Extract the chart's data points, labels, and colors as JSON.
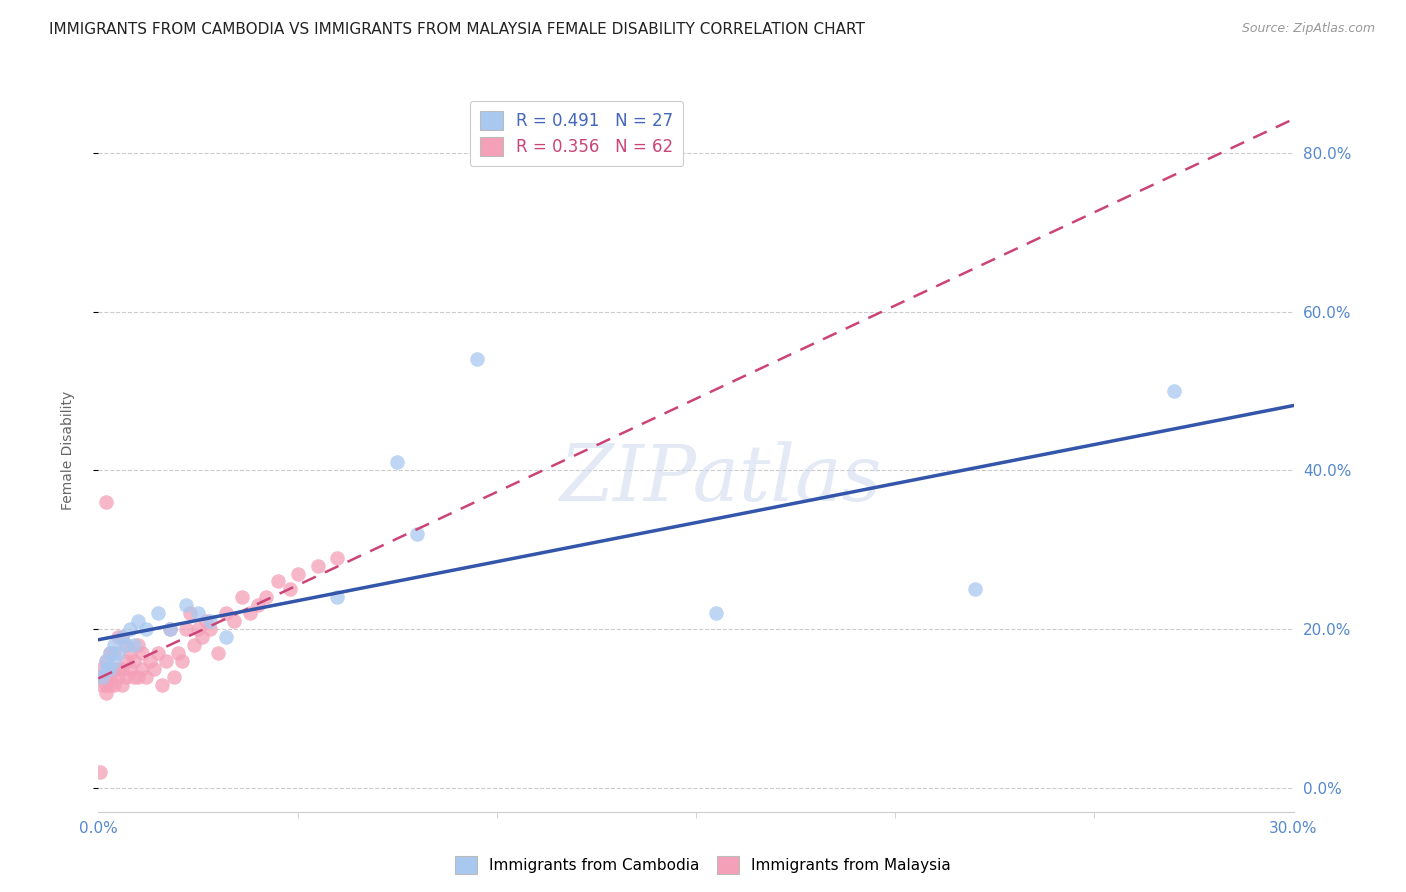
{
  "title": "IMMIGRANTS FROM CAMBODIA VS IMMIGRANTS FROM MALAYSIA FEMALE DISABILITY CORRELATION CHART",
  "source": "Source: ZipAtlas.com",
  "ylabel": "Female Disability",
  "xlim": [
    0.0,
    0.3
  ],
  "ylim": [
    -0.03,
    0.88
  ],
  "ytick_values": [
    0.0,
    0.2,
    0.4,
    0.6,
    0.8
  ],
  "xtick_values": [
    0.0,
    0.3
  ],
  "xtick_extra": [
    0.05,
    0.1,
    0.15,
    0.2,
    0.25
  ],
  "grid_color": "#cccccc",
  "background_color": "#ffffff",
  "color_cambodia": "#a8c8f0",
  "color_malaysia": "#f4a0b8",
  "line_color_cambodia": "#3355aa",
  "line_color_malaysia": "#cc4477",
  "legend_R1": "0.491",
  "legend_N1": "27",
  "legend_R2": "0.356",
  "legend_N2": "62",
  "scatter_cambodia_x": [
    0.001,
    0.002,
    0.002,
    0.003,
    0.003,
    0.004,
    0.004,
    0.005,
    0.006,
    0.007,
    0.008,
    0.009,
    0.01,
    0.012,
    0.015,
    0.018,
    0.022,
    0.025,
    0.028,
    0.032,
    0.06,
    0.075,
    0.095,
    0.155,
    0.22,
    0.27,
    0.08
  ],
  "scatter_cambodia_y": [
    0.14,
    0.15,
    0.16,
    0.15,
    0.17,
    0.16,
    0.18,
    0.17,
    0.19,
    0.18,
    0.2,
    0.18,
    0.21,
    0.2,
    0.22,
    0.2,
    0.23,
    0.22,
    0.21,
    0.19,
    0.24,
    0.41,
    0.54,
    0.22,
    0.25,
    0.5,
    0.32
  ],
  "scatter_malaysia_x": [
    0.0005,
    0.001,
    0.001,
    0.001,
    0.002,
    0.002,
    0.002,
    0.002,
    0.003,
    0.003,
    0.003,
    0.003,
    0.004,
    0.004,
    0.004,
    0.005,
    0.005,
    0.005,
    0.006,
    0.006,
    0.006,
    0.007,
    0.007,
    0.007,
    0.008,
    0.008,
    0.009,
    0.009,
    0.01,
    0.01,
    0.011,
    0.011,
    0.012,
    0.013,
    0.014,
    0.015,
    0.016,
    0.017,
    0.018,
    0.019,
    0.02,
    0.021,
    0.022,
    0.023,
    0.024,
    0.025,
    0.026,
    0.027,
    0.028,
    0.03,
    0.032,
    0.034,
    0.036,
    0.038,
    0.04,
    0.042,
    0.045,
    0.048,
    0.05,
    0.055,
    0.06,
    0.002
  ],
  "scatter_malaysia_y": [
    0.02,
    0.13,
    0.14,
    0.15,
    0.12,
    0.13,
    0.14,
    0.16,
    0.13,
    0.14,
    0.15,
    0.17,
    0.13,
    0.15,
    0.17,
    0.14,
    0.15,
    0.19,
    0.13,
    0.15,
    0.19,
    0.14,
    0.16,
    0.18,
    0.15,
    0.17,
    0.14,
    0.16,
    0.14,
    0.18,
    0.15,
    0.17,
    0.14,
    0.16,
    0.15,
    0.17,
    0.13,
    0.16,
    0.2,
    0.14,
    0.17,
    0.16,
    0.2,
    0.22,
    0.18,
    0.2,
    0.19,
    0.21,
    0.2,
    0.17,
    0.22,
    0.21,
    0.24,
    0.22,
    0.23,
    0.24,
    0.26,
    0.25,
    0.27,
    0.28,
    0.29,
    0.36
  ],
  "title_fontsize": 11,
  "axis_label_fontsize": 10,
  "tick_fontsize": 11,
  "legend_fontsize": 12
}
